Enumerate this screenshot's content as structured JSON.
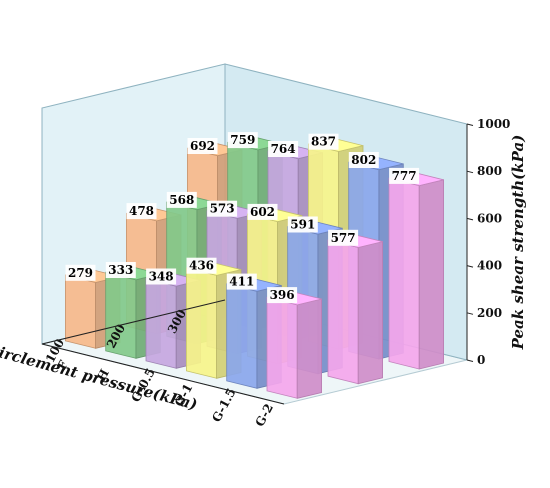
{
  "chart_data": {
    "type": "bar3d",
    "title": "",
    "x_axis": {
      "label": "Encirclement pressure(kPa)",
      "categories": [
        "100",
        "200",
        "300"
      ]
    },
    "depth_axis": {
      "label": "",
      "categories": [
        "F",
        "H",
        "G-0.5",
        "G-1",
        "G-1.5",
        "G-2"
      ]
    },
    "y_axis": {
      "label": "Peak shear strength(kPa)",
      "ticks": [
        "0",
        "200",
        "400",
        "600",
        "800",
        "1000"
      ],
      "ylim": [
        0,
        1000
      ]
    },
    "series": [
      {
        "name": "F",
        "color": "#f6b98a",
        "values": [
          279,
          478,
          692
        ]
      },
      {
        "name": "H",
        "color": "#82c98a",
        "values": [
          333,
          568,
          759
        ]
      },
      {
        "name": "G-0.5",
        "color": "#c6a6e0",
        "values": [
          348,
          573,
          764
        ]
      },
      {
        "name": "G-1",
        "color": "#f6f48a",
        "values": [
          436,
          602,
          837
        ]
      },
      {
        "name": "G-1.5",
        "color": "#8aa6ec",
        "values": [
          411,
          591,
          802
        ]
      },
      {
        "name": "G-2",
        "color": "#f4a6ec",
        "values": [
          396,
          577,
          777
        ]
      }
    ],
    "data_labels": true,
    "grid": false,
    "legend": "none"
  }
}
